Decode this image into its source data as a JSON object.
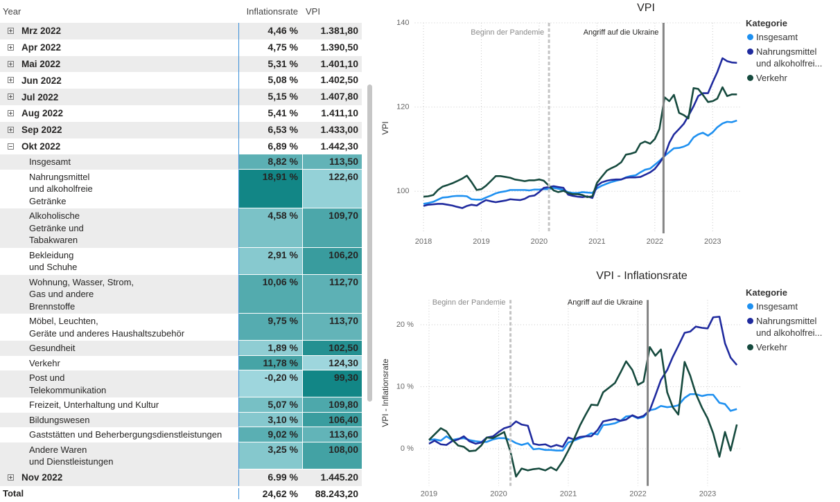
{
  "table": {
    "headers": [
      "Year",
      "Inflationsrate",
      "VPI"
    ],
    "rows": [
      {
        "label": "Mrz 2022",
        "cells": [
          "4,46 %",
          "1.381,80"
        ],
        "expanded": false
      },
      {
        "label": "Apr 2022",
        "cells": [
          "4,75 %",
          "1.390,50"
        ],
        "expanded": false
      },
      {
        "label": "Mai 2022",
        "cells": [
          "5,31 %",
          "1.401,10"
        ],
        "expanded": false
      },
      {
        "label": "Jun 2022",
        "cells": [
          "5,08 %",
          "1.402,50"
        ],
        "expanded": false
      },
      {
        "label": "Jul 2022",
        "cells": [
          "5,15 %",
          "1.407,80"
        ],
        "expanded": false
      },
      {
        "label": "Aug 2022",
        "cells": [
          "5,41 %",
          "1.411,10"
        ],
        "expanded": false
      },
      {
        "label": "Sep 2022",
        "cells": [
          "6,53 %",
          "1.433,00"
        ],
        "expanded": false
      },
      {
        "label": "Okt 2022",
        "cells": [
          "6,89 %",
          "1.442,30"
        ],
        "expanded": true,
        "children": [
          {
            "label": "Insgesamt",
            "cells": [
              "8,82 %",
              "113,50"
            ]
          },
          {
            "label": "Nahrungsmittel\nund alkoholfreie\nGetränke",
            "cells": [
              "18,91 %",
              "122,60"
            ]
          },
          {
            "label": "Alkoholische\nGetränke und\nTabakwaren",
            "cells": [
              "4,58 %",
              "109,70"
            ]
          },
          {
            "label": "Bekleidung\nund Schuhe",
            "cells": [
              "2,91 %",
              "106,20"
            ]
          },
          {
            "label": "Wohnung, Wasser, Strom,\nGas und andere\nBrennstoffe",
            "cells": [
              "10,06 %",
              "112,70"
            ]
          },
          {
            "label": "Möbel, Leuchten,\nGeräte und anderes Haushaltszubehör",
            "cells": [
              "9,75 %",
              "113,70"
            ]
          },
          {
            "label": "Gesundheit",
            "cells": [
              "1,89 %",
              "102,50"
            ]
          },
          {
            "label": "Verkehr",
            "cells": [
              "11,78 %",
              "124,30"
            ]
          },
          {
            "label": "Post und\nTelekommunikation",
            "cells": [
              "-0,20 %",
              "99,30"
            ]
          },
          {
            "label": "Freizeit, Unterhaltung und Kultur",
            "cells": [
              "5,07 %",
              "109,80"
            ]
          },
          {
            "label": "Bildungswesen",
            "cells": [
              "3,10 %",
              "106,40"
            ]
          },
          {
            "label": "Gaststätten und Beherbergungsdienstleistungen",
            "cells": [
              "9,02 %",
              "113,60"
            ]
          },
          {
            "label": "Andere Waren\nund Dienstleistungen",
            "cells": [
              "3,25 %",
              "108,00"
            ]
          }
        ]
      },
      {
        "label": "Nov 2022",
        "cells": [
          "6.99 %",
          "1.445.20"
        ],
        "expanded": false
      }
    ],
    "total": {
      "label": "Total",
      "cells": [
        "24,62 %",
        "88.243,20"
      ]
    }
  },
  "chart_data": [
    {
      "type": "line",
      "title": "VPI",
      "y_label": "VPI",
      "legend_title": "Kategorie",
      "legend": "right",
      "grid": true,
      "xlim": [
        2017.85,
        2023.5
      ],
      "xticks": [
        2018,
        2019,
        2020,
        2021,
        2022,
        2023
      ],
      "ylim": [
        90,
        140
      ],
      "yticks": [
        100,
        120,
        140
      ],
      "annotations": [
        {
          "text": "Beginn der Pandemie",
          "x": 2020.17,
          "style": "dashed"
        },
        {
          "text": "Angriff auf die Ukraine",
          "x": 2022.15,
          "style": "solid"
        }
      ],
      "x": [
        2018,
        2018.08,
        2018.17,
        2018.25,
        2018.33,
        2018.42,
        2018.5,
        2018.58,
        2018.67,
        2018.75,
        2018.83,
        2018.92,
        2019,
        2019.08,
        2019.17,
        2019.25,
        2019.33,
        2019.42,
        2019.5,
        2019.58,
        2019.67,
        2019.75,
        2019.83,
        2019.92,
        2020,
        2020.08,
        2020.17,
        2020.25,
        2020.33,
        2020.42,
        2020.5,
        2020.58,
        2020.67,
        2020.75,
        2020.83,
        2020.92,
        2021,
        2021.08,
        2021.17,
        2021.25,
        2021.33,
        2021.42,
        2021.5,
        2021.58,
        2021.67,
        2021.75,
        2021.83,
        2021.92,
        2022,
        2022.08,
        2022.17,
        2022.25,
        2022.33,
        2022.42,
        2022.5,
        2022.58,
        2022.67,
        2022.75,
        2022.83,
        2022.92,
        2023,
        2023.08,
        2023.17,
        2023.25,
        2023.33,
        2023.42
      ],
      "series": [
        {
          "name": "Insgesamt",
          "color": "#1E90F0",
          "values": [
            97.0,
            97.2,
            97.5,
            98.0,
            98.5,
            98.6,
            98.8,
            98.9,
            98.9,
            98.8,
            98.1,
            98.0,
            98.0,
            98.5,
            99.0,
            99.5,
            99.8,
            100.0,
            100.3,
            100.3,
            100.3,
            100.3,
            100.2,
            100.4,
            100.4,
            100.5,
            100.5,
            100.8,
            100.6,
            100.3,
            99.8,
            99.6,
            99.6,
            99.8,
            99.7,
            99.6,
            100.7,
            101.3,
            101.8,
            102.2,
            102.5,
            102.8,
            103.3,
            103.6,
            103.8,
            104.5,
            105.1,
            105.4,
            106.3,
            107.2,
            108.4,
            109.3,
            110.2,
            110.3,
            110.6,
            111.1,
            112.8,
            113.5,
            113.9,
            113.2,
            114.0,
            115.2,
            116.1,
            116.5,
            116.4,
            116.8
          ]
        },
        {
          "name": "Nahrungsmittel und alkoholfrei...",
          "color": "#1F2A9E",
          "values": [
            96.5,
            96.8,
            96.9,
            97.0,
            97.0,
            96.8,
            96.6,
            96.3,
            96.0,
            96.5,
            96.8,
            96.6,
            97.3,
            97.9,
            97.6,
            97.4,
            97.6,
            97.8,
            98.1,
            98.0,
            97.9,
            98.2,
            98.8,
            99.0,
            99.8,
            100.8,
            101.0,
            101.2,
            101.0,
            100.8,
            99.2,
            98.9,
            98.7,
            98.6,
            98.8,
            98.4,
            101.3,
            102.1,
            102.5,
            102.7,
            102.8,
            102.8,
            103.2,
            103.3,
            103.3,
            103.4,
            103.9,
            104.5,
            105.3,
            106.7,
            108.5,
            111.5,
            113.5,
            114.8,
            116.0,
            117.9,
            120.2,
            122.6,
            123.3,
            123.3,
            125.9,
            128.3,
            131.6,
            130.9,
            130.6,
            130.5
          ]
        },
        {
          "name": "Verkehr",
          "color": "#164A3E",
          "values": [
            98.7,
            98.8,
            99.1,
            100.3,
            101.1,
            101.5,
            101.9,
            102.4,
            103.0,
            103.7,
            102.2,
            100.3,
            100.5,
            101.3,
            102.5,
            103.6,
            103.6,
            103.4,
            103.2,
            102.8,
            102.6,
            102.4,
            102.6,
            102.6,
            102.8,
            102.5,
            101.3,
            100.2,
            99.8,
            100.1,
            99.6,
            99.3,
            99.3,
            99.1,
            98.6,
            98.8,
            102.0,
            103.4,
            104.9,
            105.5,
            106.0,
            106.9,
            108.7,
            108.9,
            109.3,
            111.3,
            111.8,
            111.3,
            112.4,
            114.8,
            122.3,
            121.4,
            122.9,
            118.6,
            118.1,
            117.3,
            124.5,
            124.3,
            122.9,
            121.2,
            121.4,
            122.0,
            124.7,
            122.6,
            123.0,
            123.0
          ]
        }
      ]
    },
    {
      "type": "line",
      "title": "VPI - Inflationsrate",
      "y_label": "VPI - Inflationsrate",
      "legend_title": "Kategorie",
      "legend": "right",
      "grid": true,
      "xlim": [
        2018.88,
        2023.47
      ],
      "xticks": [
        2019,
        2020,
        2021,
        2022,
        2023
      ],
      "ylim": [
        -6,
        24
      ],
      "yticks": [
        {
          "value": 0,
          "label": "0 %"
        },
        {
          "value": 10,
          "label": "10 %"
        },
        {
          "value": 20,
          "label": "20 %"
        }
      ],
      "annotations": [
        {
          "text": "Beginn der Pandemie",
          "x": 2020.17,
          "style": "dashed"
        },
        {
          "text": "Angriff auf die Ukraine",
          "x": 2022.14,
          "style": "solid"
        }
      ],
      "x": [
        2019,
        2019.08,
        2019.17,
        2019.25,
        2019.33,
        2019.42,
        2019.5,
        2019.58,
        2019.67,
        2019.75,
        2019.83,
        2019.92,
        2020,
        2020.08,
        2020.17,
        2020.25,
        2020.33,
        2020.42,
        2020.5,
        2020.58,
        2020.67,
        2020.75,
        2020.83,
        2020.92,
        2021,
        2021.08,
        2021.17,
        2021.25,
        2021.33,
        2021.42,
        2021.5,
        2021.58,
        2021.67,
        2021.75,
        2021.83,
        2021.92,
        2022,
        2022.08,
        2022.17,
        2022.25,
        2022.33,
        2022.42,
        2022.5,
        2022.58,
        2022.67,
        2022.75,
        2022.83,
        2022.92,
        2023,
        2023.08,
        2023.17,
        2023.25,
        2023.33,
        2023.42
      ],
      "series": [
        {
          "name": "Insgesamt",
          "color": "#1E90F0",
          "values": [
            1.4,
            1.5,
            1.3,
            2.0,
            1.4,
            1.6,
            1.7,
            1.4,
            1.2,
            1.1,
            1.1,
            1.5,
            1.7,
            1.7,
            1.4,
            0.9,
            0.6,
            0.9,
            -0.1,
            0.0,
            -0.2,
            -0.2,
            -0.3,
            -0.3,
            1.0,
            1.3,
            1.7,
            2.0,
            2.5,
            2.3,
            3.8,
            3.9,
            4.1,
            4.5,
            5.2,
            5.3,
            4.9,
            5.1,
            6.2,
            6.4,
            6.9,
            6.7,
            6.8,
            7.0,
            8.2,
            8.8,
            8.8,
            8.5,
            8.7,
            8.7,
            7.4,
            7.2,
            6.1,
            6.4
          ]
        },
        {
          "name": "Nahrungsmittel und alkoholfrei...",
          "color": "#1F2A9E",
          "values": [
            0.8,
            1.3,
            0.7,
            0.6,
            1.2,
            1.5,
            2.0,
            1.2,
            0.8,
            1.0,
            1.8,
            2.0,
            2.7,
            3.3,
            3.6,
            4.4,
            3.9,
            3.7,
            0.8,
            0.6,
            0.7,
            0.3,
            0.6,
            0.3,
            1.8,
            1.5,
            1.9,
            2.0,
            2.0,
            3.0,
            4.4,
            4.6,
            4.8,
            4.5,
            4.7,
            5.4,
            5.0,
            5.3,
            6.2,
            8.6,
            11.1,
            12.7,
            14.8,
            16.6,
            18.7,
            18.9,
            19.7,
            19.5,
            19.4,
            21.2,
            21.3,
            17.0,
            14.7,
            13.5
          ]
        },
        {
          "name": "Verkehr",
          "color": "#164A3E",
          "values": [
            1.4,
            2.3,
            3.3,
            2.8,
            1.5,
            0.5,
            0.3,
            -0.4,
            -0.3,
            0.5,
            1.8,
            1.7,
            2.2,
            2.7,
            -0.5,
            -4.5,
            -3.2,
            -3.5,
            -3.3,
            -3.2,
            -3.5,
            -3.0,
            -3.5,
            -2.0,
            -0.3,
            1.5,
            3.8,
            5.5,
            7.1,
            7.0,
            9.1,
            9.8,
            10.6,
            12.3,
            14.1,
            12.7,
            10.3,
            10.8,
            16.4,
            15.0,
            16.0,
            9.1,
            6.7,
            5.5,
            14.0,
            11.8,
            8.9,
            6.6,
            4.9,
            2.5,
            -1.3,
            2.7,
            -0.3,
            3.9
          ]
        }
      ]
    }
  ]
}
